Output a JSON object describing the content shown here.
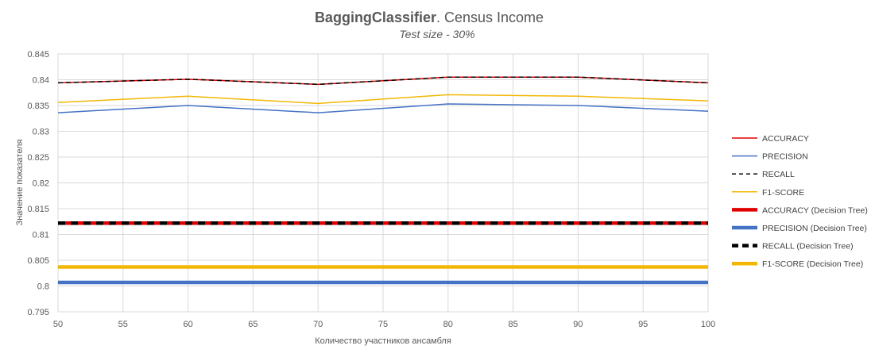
{
  "chart_data": {
    "type": "line",
    "title_bold": "BaggingClassifier",
    "title_rest": ". Census Income",
    "subtitle": "Test size - 30%",
    "xlabel": "Количество участников ансамбля",
    "ylabel": "Значение показателя",
    "xlim": [
      50,
      100
    ],
    "ylim": [
      0.795,
      0.845
    ],
    "x_ticks": [
      "50",
      "55",
      "60",
      "65",
      "70",
      "75",
      "80",
      "85",
      "90",
      "95",
      "100"
    ],
    "y_ticks": [
      "0.795",
      "0.8",
      "0.805",
      "0.81",
      "0.815",
      "0.82",
      "0.825",
      "0.83",
      "0.835",
      "0.84",
      "0.845"
    ],
    "grid": true,
    "legend_position": "right",
    "x": [
      50,
      60,
      70,
      80,
      90,
      100
    ],
    "series": [
      {
        "name": "ACCURACY",
        "color": "#e00000",
        "dashed": false,
        "thick": false,
        "values": [
          0.8394,
          0.8401,
          0.8391,
          0.8405,
          0.8405,
          0.8394
        ]
      },
      {
        "name": "PRECISION",
        "color": "#4472c4",
        "dashed": false,
        "thick": false,
        "values": [
          0.8336,
          0.835,
          0.8336,
          0.8353,
          0.835,
          0.8339
        ]
      },
      {
        "name": "RECALL",
        "color": "#000000",
        "dashed": true,
        "thick": false,
        "values": [
          0.8394,
          0.8401,
          0.8391,
          0.8405,
          0.8405,
          0.8394
        ]
      },
      {
        "name": "F1-SCORE",
        "color": "#f2b705",
        "dashed": false,
        "thick": false,
        "values": [
          0.8356,
          0.8368,
          0.8354,
          0.8371,
          0.8368,
          0.8359
        ]
      },
      {
        "name": "ACCURACY (Decision Tree)",
        "color": "#e00000",
        "dashed": false,
        "thick": true,
        "values": [
          0.8122,
          0.8122,
          0.8122,
          0.8122,
          0.8122,
          0.8122
        ]
      },
      {
        "name": "PRECISION (Decision Tree)",
        "color": "#4472c4",
        "dashed": false,
        "thick": true,
        "values": [
          0.8007,
          0.8007,
          0.8007,
          0.8007,
          0.8007,
          0.8007
        ]
      },
      {
        "name": "RECALL (Decision Tree)",
        "color": "#000000",
        "dashed": true,
        "thick": true,
        "values": [
          0.8122,
          0.8122,
          0.8122,
          0.8122,
          0.8122,
          0.8122
        ]
      },
      {
        "name": "F1-SCORE (Decision Tree)",
        "color": "#f2b705",
        "dashed": false,
        "thick": true,
        "values": [
          0.8037,
          0.8037,
          0.8037,
          0.8037,
          0.8037,
          0.8037
        ]
      }
    ]
  }
}
